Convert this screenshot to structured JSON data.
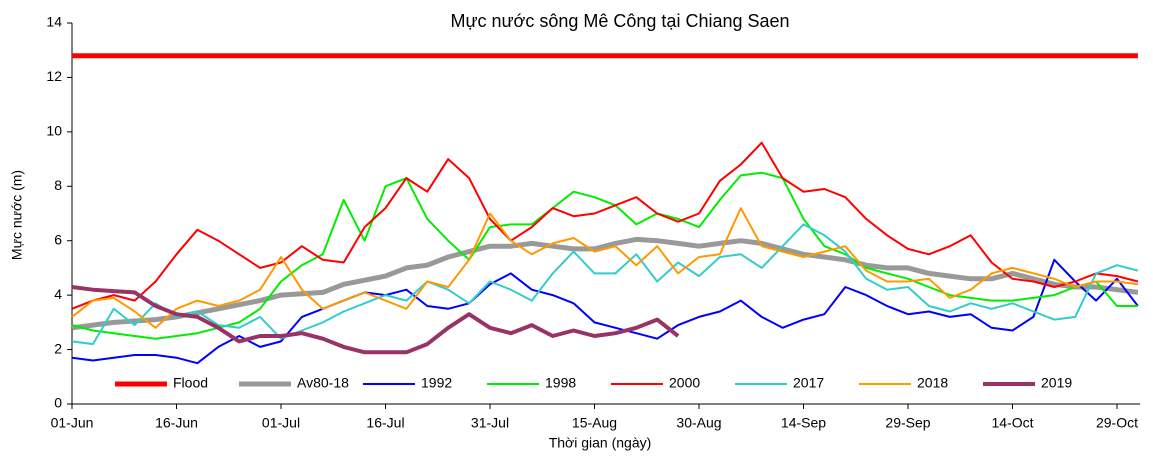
{
  "chart_data": {
    "type": "line",
    "title": "Mực nước sông Mê Công tại Chiang Saen",
    "x_label": "Thời gian (ngày)",
    "y_label": "Mực nước (m)",
    "categories": [
      "01-Jun",
      null,
      null,
      null,
      null,
      "16-Jun",
      null,
      null,
      null,
      null,
      "01-Jul",
      null,
      null,
      null,
      null,
      "16-Jul",
      null,
      null,
      null,
      null,
      "31-Jul",
      null,
      null,
      null,
      null,
      "15-Aug",
      null,
      null,
      null,
      null,
      "30-Aug",
      null,
      null,
      null,
      null,
      "14-Sep",
      null,
      null,
      null,
      null,
      "29-Sep",
      null,
      null,
      null,
      null,
      "14-Oct",
      null,
      null,
      null,
      null,
      "29-Oct",
      null
    ],
    "ylim": [
      0,
      14
    ],
    "yticks": [
      0,
      2,
      4,
      6,
      8,
      10,
      12,
      14
    ],
    "series": [
      {
        "name": "Flood",
        "color": "#ff0000",
        "width": 5,
        "values": [
          12.8,
          12.8,
          12.8,
          12.8,
          12.8,
          12.8,
          12.8,
          12.8,
          12.8,
          12.8,
          12.8,
          12.8,
          12.8,
          12.8,
          12.8,
          12.8,
          12.8,
          12.8,
          12.8,
          12.8,
          12.8,
          12.8,
          12.8,
          12.8,
          12.8,
          12.8,
          12.8,
          12.8,
          12.8,
          12.8,
          12.8,
          12.8,
          12.8,
          12.8,
          12.8,
          12.8,
          12.8,
          12.8,
          12.8,
          12.8,
          12.8,
          12.8,
          12.8,
          12.8,
          12.8,
          12.8,
          12.8,
          12.8,
          12.8,
          12.8,
          12.8,
          12.8
        ]
      },
      {
        "name": "Av80-18",
        "color": "#999999",
        "width": 5,
        "values": [
          2.8,
          2.9,
          3.0,
          3.05,
          3.1,
          3.2,
          3.35,
          3.5,
          3.65,
          3.8,
          4.0,
          4.05,
          4.1,
          4.4,
          4.55,
          4.7,
          5.0,
          5.1,
          5.4,
          5.6,
          5.8,
          5.8,
          5.9,
          5.8,
          5.7,
          5.7,
          5.9,
          6.05,
          6.0,
          5.9,
          5.8,
          5.9,
          6.0,
          5.9,
          5.7,
          5.5,
          5.4,
          5.3,
          5.1,
          5.0,
          5.0,
          4.8,
          4.7,
          4.6,
          4.6,
          4.8,
          4.6,
          4.4,
          4.3,
          4.3,
          4.2,
          4.1
        ]
      },
      {
        "name": "1992",
        "color": "#0000ff",
        "width": 2,
        "values": [
          1.7,
          1.6,
          1.7,
          1.8,
          1.8,
          1.7,
          1.5,
          2.1,
          2.5,
          2.1,
          2.3,
          3.2,
          3.5,
          3.8,
          4.1,
          4.0,
          4.2,
          3.6,
          3.5,
          3.7,
          4.4,
          4.8,
          4.2,
          4.0,
          3.7,
          3.0,
          2.8,
          2.6,
          2.4,
          2.9,
          3.2,
          3.4,
          3.8,
          3.2,
          2.8,
          3.1,
          3.3,
          4.3,
          4.0,
          3.6,
          3.3,
          3.4,
          3.2,
          3.3,
          2.8,
          2.7,
          3.2,
          5.3,
          4.5,
          3.8,
          4.6,
          3.6
        ]
      },
      {
        "name": "1998",
        "color": "#00ee00",
        "width": 2,
        "values": [
          2.9,
          2.7,
          2.6,
          2.5,
          2.4,
          2.5,
          2.6,
          2.8,
          3.0,
          3.5,
          4.5,
          5.1,
          5.5,
          7.5,
          6.0,
          8.0,
          8.3,
          6.8,
          6.0,
          5.3,
          6.5,
          6.6,
          6.6,
          7.2,
          7.8,
          7.6,
          7.3,
          6.6,
          7.0,
          6.8,
          6.5,
          7.5,
          8.4,
          8.5,
          8.3,
          6.8,
          5.8,
          5.5,
          5.0,
          4.8,
          4.6,
          4.3,
          4.0,
          3.9,
          3.8,
          3.8,
          3.9,
          4.0,
          4.3,
          4.5,
          3.6,
          3.6
        ]
      },
      {
        "name": "2000",
        "color": "#ff0000",
        "width": 2,
        "values": [
          3.5,
          3.8,
          4.0,
          3.8,
          4.5,
          5.5,
          6.4,
          6.0,
          5.5,
          5.0,
          5.2,
          5.8,
          5.3,
          5.2,
          6.5,
          7.2,
          8.3,
          7.8,
          9.0,
          8.3,
          6.8,
          6.0,
          6.5,
          7.2,
          6.9,
          7.0,
          7.3,
          7.6,
          7.0,
          6.7,
          7.0,
          8.2,
          8.8,
          9.6,
          8.3,
          7.8,
          7.9,
          7.6,
          6.8,
          6.2,
          5.7,
          5.5,
          5.8,
          6.2,
          5.2,
          4.6,
          4.5,
          4.3,
          4.5,
          4.8,
          4.7,
          4.5
        ]
      },
      {
        "name": "2017",
        "color": "#33cccc",
        "width": 2,
        "values": [
          2.3,
          2.2,
          3.5,
          2.9,
          3.7,
          3.2,
          3.4,
          2.9,
          2.8,
          3.2,
          2.4,
          2.7,
          3.0,
          3.4,
          3.7,
          4.0,
          3.8,
          4.5,
          4.2,
          3.7,
          4.5,
          4.2,
          3.8,
          4.8,
          5.6,
          4.8,
          4.8,
          5.5,
          4.5,
          5.2,
          4.7,
          5.4,
          5.5,
          5.0,
          5.8,
          6.6,
          6.2,
          5.6,
          4.6,
          4.2,
          4.3,
          3.6,
          3.4,
          3.7,
          3.5,
          3.7,
          3.4,
          3.1,
          3.2,
          4.8,
          5.1,
          4.9
        ]
      },
      {
        "name": "2018",
        "color": "#ff9900",
        "width": 2,
        "values": [
          3.2,
          3.8,
          3.9,
          3.4,
          2.8,
          3.5,
          3.8,
          3.6,
          3.8,
          4.2,
          5.4,
          4.2,
          3.5,
          3.8,
          4.1,
          3.8,
          3.5,
          4.5,
          4.3,
          5.3,
          7.0,
          6.0,
          5.5,
          5.9,
          6.1,
          5.6,
          5.8,
          5.1,
          5.8,
          4.8,
          5.4,
          5.5,
          7.2,
          5.8,
          5.6,
          5.4,
          5.6,
          5.8,
          4.9,
          4.5,
          4.5,
          4.6,
          3.9,
          4.2,
          4.8,
          5.0,
          4.8,
          4.6,
          4.3,
          4.5,
          4.5,
          4.4
        ]
      },
      {
        "name": "2019",
        "color": "#993366",
        "width": 4,
        "values": [
          4.3,
          4.2,
          4.15,
          4.1,
          3.6,
          3.3,
          3.2,
          2.8,
          2.3,
          2.5,
          2.5,
          2.6,
          2.4,
          2.1,
          1.9,
          1.9,
          1.9,
          2.2,
          2.8,
          3.3,
          2.8,
          2.6,
          2.9,
          2.5,
          2.7,
          2.5,
          2.6,
          2.8,
          3.1,
          2.5,
          null,
          null,
          null,
          null,
          null,
          null,
          null,
          null,
          null,
          null,
          null,
          null,
          null,
          null,
          null,
          null,
          null,
          null,
          null,
          null,
          null,
          null
        ]
      }
    ]
  }
}
